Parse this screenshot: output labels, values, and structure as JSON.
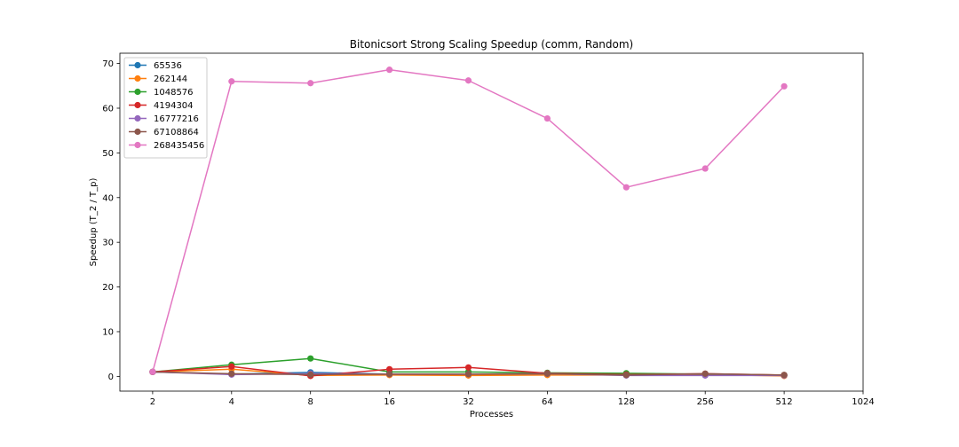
{
  "chart_data": {
    "type": "line",
    "title": "Bitonicsort Strong Scaling Speedup (comm, Random)",
    "xlabel": "Processes",
    "ylabel": "Speedup (T_2 / T_p)",
    "x_scale": "log2",
    "xlim": [
      1.5,
      1024
    ],
    "ylim": [
      -3.3,
      72.3
    ],
    "x_ticks": [
      2,
      4,
      8,
      16,
      32,
      64,
      128,
      256,
      512,
      1024
    ],
    "x_tick_labels": [
      "2",
      "4",
      "8",
      "16",
      "32",
      "64",
      "128",
      "256",
      "512",
      "1024"
    ],
    "y_ticks": [
      0,
      10,
      20,
      30,
      40,
      50,
      60,
      70
    ],
    "y_tick_labels": [
      "0",
      "10",
      "20",
      "30",
      "40",
      "50",
      "60",
      "70"
    ],
    "grid": false,
    "legend_position": "upper-left",
    "x": [
      2,
      4,
      8,
      16,
      32,
      64,
      128,
      256,
      512
    ],
    "series": [
      {
        "name": "65536",
        "color": "#1f77b4",
        "values": [
          1.0,
          0.5,
          0.9,
          0.5,
          0.5,
          0.5,
          0.3,
          0.4,
          0.2
        ]
      },
      {
        "name": "262144",
        "color": "#ff7f0e",
        "values": [
          1.0,
          1.6,
          0.2,
          0.3,
          0.2,
          0.3,
          0.3,
          0.4,
          0.1
        ]
      },
      {
        "name": "1048576",
        "color": "#2ca02c",
        "values": [
          1.0,
          2.6,
          4.0,
          1.0,
          1.0,
          0.8,
          0.7,
          0.5,
          0.3
        ]
      },
      {
        "name": "4194304",
        "color": "#d62728",
        "values": [
          1.0,
          2.2,
          0.1,
          1.6,
          2.0,
          0.7,
          0.4,
          0.6,
          0.3
        ]
      },
      {
        "name": "16777216",
        "color": "#9467bd",
        "values": [
          1.0,
          0.4,
          0.6,
          0.5,
          0.5,
          0.6,
          0.2,
          0.2,
          0.2
        ]
      },
      {
        "name": "67108864",
        "color": "#8c564b",
        "values": [
          1.0,
          0.6,
          0.4,
          0.5,
          0.5,
          0.6,
          0.3,
          0.6,
          0.3
        ]
      },
      {
        "name": "268435456",
        "color": "#e377c2",
        "values": [
          1.0,
          66.0,
          65.6,
          68.6,
          66.2,
          57.7,
          42.3,
          46.5,
          64.9
        ]
      }
    ]
  }
}
